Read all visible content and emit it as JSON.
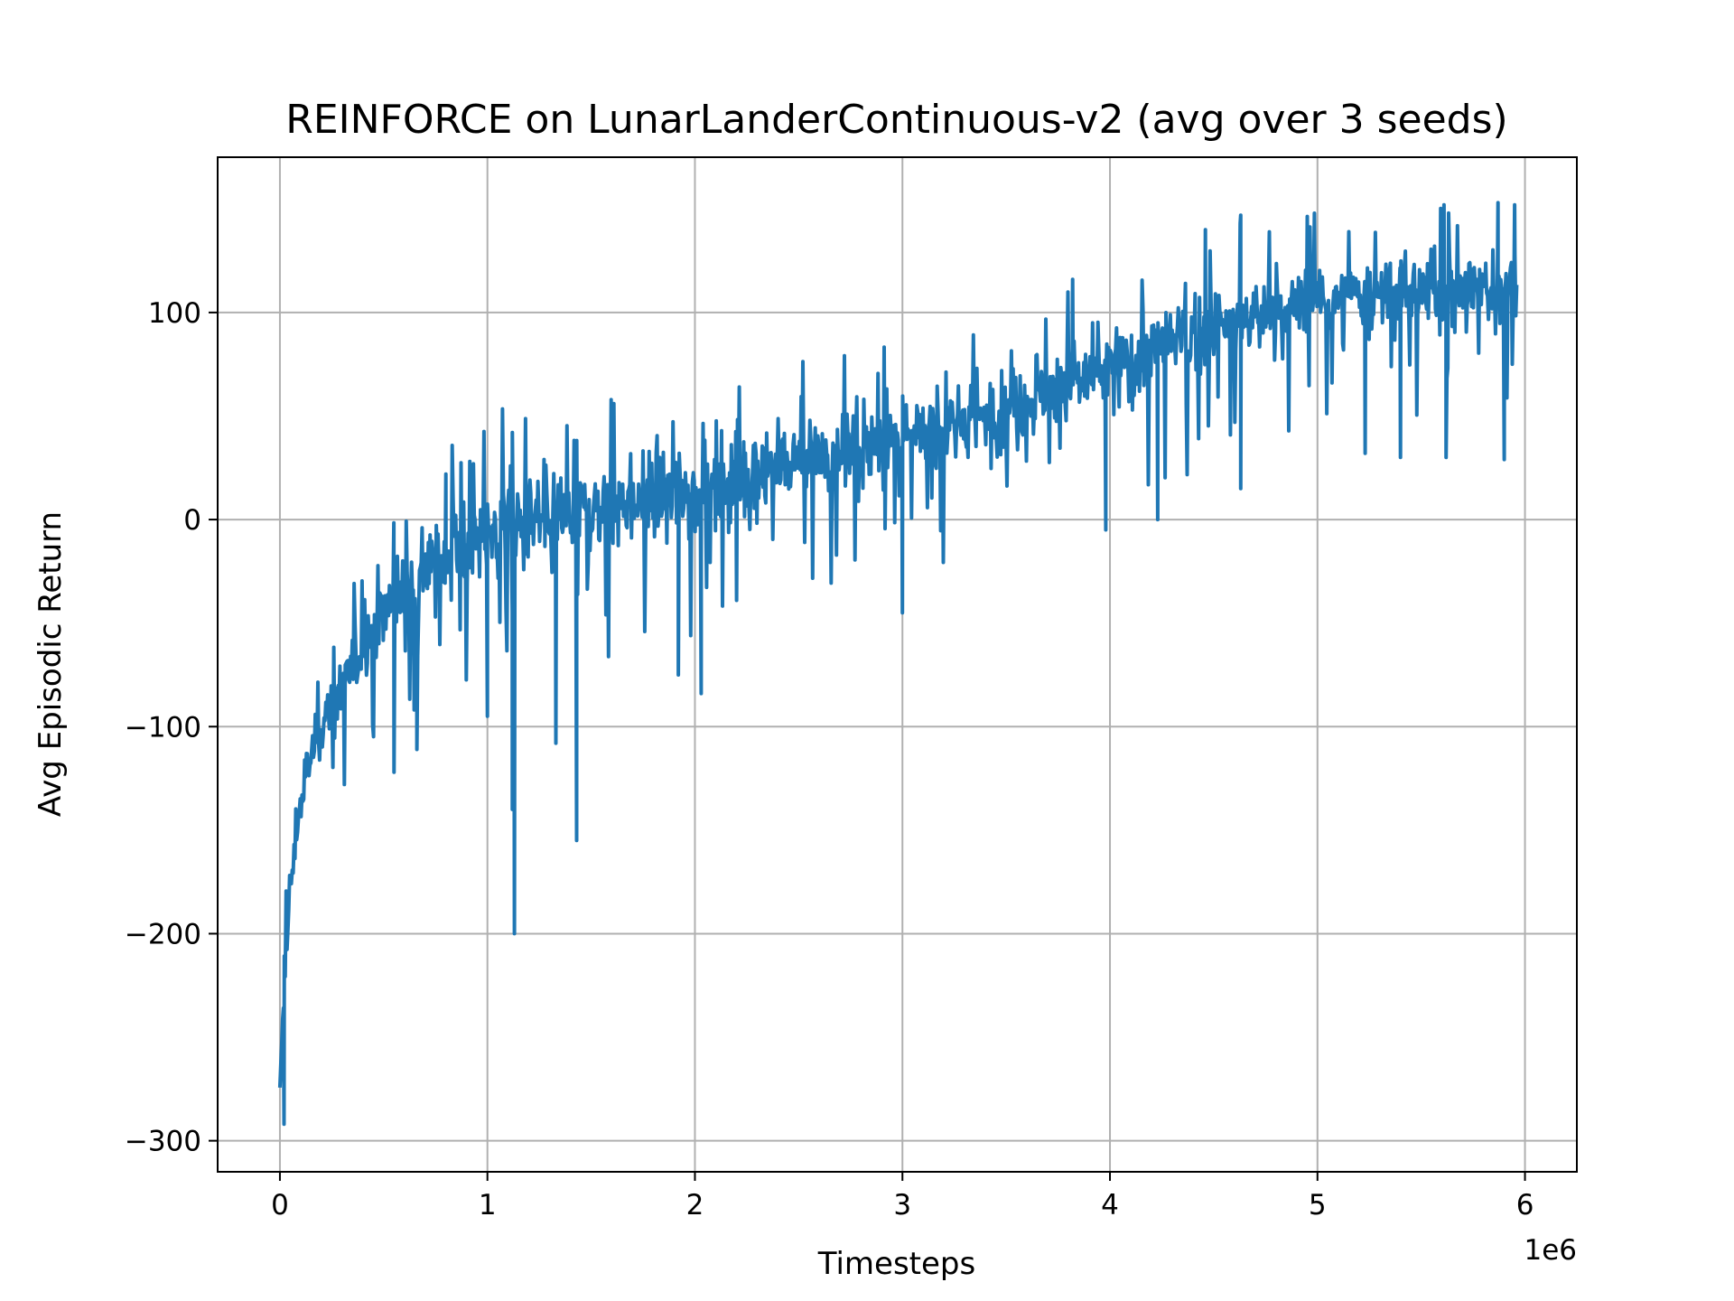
{
  "chart_data": {
    "type": "line",
    "title": "REINFORCE on LunarLanderContinuous-v2 (avg over 3 seeds)",
    "xlabel": "Timesteps",
    "ylabel": "Avg Episodic Return",
    "x_offset_text": "1e6",
    "xlim": [
      -0.3,
      6.25
    ],
    "ylim": [
      -315,
      175
    ],
    "x_scale": 1000000,
    "xticks": [
      0,
      1,
      2,
      3,
      4,
      5,
      6
    ],
    "xtick_labels": [
      "0",
      "1",
      "2",
      "3",
      "4",
      "5",
      "6"
    ],
    "yticks": [
      -300,
      -200,
      -100,
      0,
      100
    ],
    "ytick_labels": [
      "−300",
      "−200",
      "−100",
      "0",
      "100"
    ],
    "grid": true,
    "line_color": "#1f77b4",
    "series": [
      {
        "x": [
          0.0,
          0.02,
          0.05,
          0.08,
          0.12,
          0.17,
          0.23,
          0.3,
          0.38,
          0.46,
          0.55,
          0.65,
          0.75,
          0.85,
          1.0,
          1.2,
          1.5,
          1.8,
          2.0,
          2.3,
          2.6,
          3.0,
          3.4,
          3.7,
          4.0,
          4.3,
          4.6,
          5.0,
          5.3,
          5.6,
          5.96
        ],
        "mean": [
          -280,
          -225,
          -180,
          -150,
          -125,
          -108,
          -95,
          -80,
          -65,
          -50,
          -38,
          -28,
          -20,
          -14,
          -8,
          -2,
          5,
          12,
          15,
          22,
          30,
          38,
          50,
          62,
          72,
          85,
          95,
          105,
          108,
          110,
          112
        ],
        "noise": [
          10,
          25,
          22,
          16,
          14,
          14,
          16,
          18,
          20,
          22,
          24,
          26,
          28,
          28,
          30,
          30,
          28,
          26,
          26,
          26,
          24,
          24,
          24,
          24,
          24,
          24,
          24,
          22,
          22,
          24,
          24
        ]
      }
    ],
    "spikes": [
      {
        "x": 0.02,
        "y": -292
      },
      {
        "x": 1.13,
        "y": -200
      },
      {
        "x": 1.43,
        "y": -155
      },
      {
        "x": 1.12,
        "y": -140
      },
      {
        "x": 0.55,
        "y": -122
      },
      {
        "x": 0.66,
        "y": -111
      },
      {
        "x": 1.12,
        "y": 42
      },
      {
        "x": 0.8,
        "y": 22
      },
      {
        "x": 1.0,
        "y": -95
      },
      {
        "x": 1.33,
        "y": -108
      },
      {
        "x": 3.0,
        "y": -45
      },
      {
        "x": 1.92,
        "y": -75
      },
      {
        "x": 2.03,
        "y": -84
      },
      {
        "x": 3.82,
        "y": 116
      },
      {
        "x": 3.98,
        "y": -5
      },
      {
        "x": 4.23,
        "y": 0
      },
      {
        "x": 4.46,
        "y": 140
      },
      {
        "x": 4.63,
        "y": 147
      },
      {
        "x": 4.63,
        "y": 15
      },
      {
        "x": 5.23,
        "y": 32
      },
      {
        "x": 5.4,
        "y": 30
      },
      {
        "x": 5.61,
        "y": 152
      },
      {
        "x": 5.62,
        "y": 30
      },
      {
        "x": 5.87,
        "y": 153
      },
      {
        "x": 5.9,
        "y": 29
      },
      {
        "x": 5.95,
        "y": 152
      }
    ]
  }
}
